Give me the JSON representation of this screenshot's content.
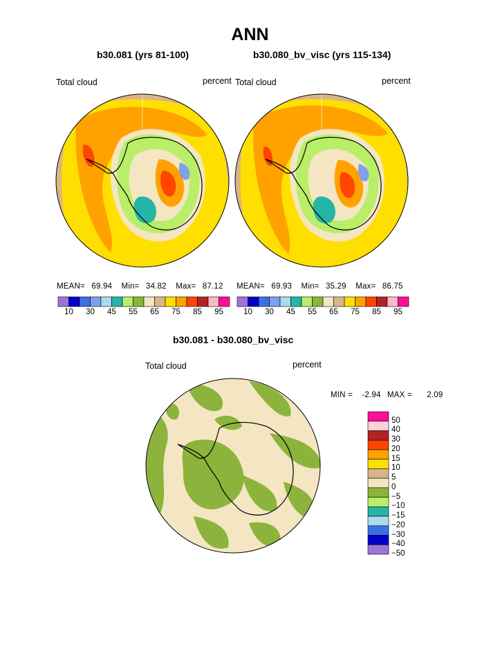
{
  "title": "ANN",
  "panels": [
    {
      "subtitle": "b30.081 (yrs 81-100)",
      "left_label": "Total cloud",
      "right_label": "percent",
      "stats": {
        "mean_label": "MEAN=",
        "mean": "69.94",
        "min_label": "Min=",
        "min": "34.82",
        "max_label": "Max=",
        "max": "87.12"
      }
    },
    {
      "subtitle": "b30.080_bv_visc (yrs 115-134)",
      "left_label": "Total cloud",
      "right_label": "percent",
      "stats": {
        "mean_label": "MEAN=",
        "mean": "69.93",
        "min_label": "Min=",
        "min": "35.29",
        "max_label": "Max=",
        "max": "86.75"
      }
    }
  ],
  "abs_colorbar": {
    "colors": [
      "#9b76d9",
      "#0000c8",
      "#3d6ee6",
      "#7fa0ea",
      "#a9dcef",
      "#25b5a6",
      "#b8ee68",
      "#8cb33c",
      "#f4e6c2",
      "#d9b586",
      "#ffdf00",
      "#ffa200",
      "#ff4500",
      "#b02424",
      "#ffb6c8",
      "#ff0f96"
    ],
    "tick_labels": [
      "10",
      "30",
      "45",
      "55",
      "65",
      "75",
      "85",
      "95"
    ]
  },
  "diff": {
    "subtitle": "b30.081 - b30.080_bv_visc",
    "left_label": "Total cloud",
    "right_label": "percent",
    "stats": {
      "min_label": "MIN =",
      "min": "-2.94",
      "max_label": "MAX =",
      "max": "2.09"
    },
    "colorbar": {
      "colors_top_to_bottom": [
        "#ff0f96",
        "#ffcfd7",
        "#b02424",
        "#ff4500",
        "#ffa200",
        "#ffdf00",
        "#d9b586",
        "#f4e6c2",
        "#8cb33c",
        "#b8ee68",
        "#25b5a6",
        "#a9dcef",
        "#3d6ee6",
        "#0000c8",
        "#9b76d9"
      ],
      "tick_labels": [
        "50",
        "40",
        "30",
        "20",
        "15",
        "10",
        "5",
        "0",
        "−5",
        "−10",
        "−15",
        "−20",
        "−30",
        "−40",
        "−50"
      ]
    }
  }
}
